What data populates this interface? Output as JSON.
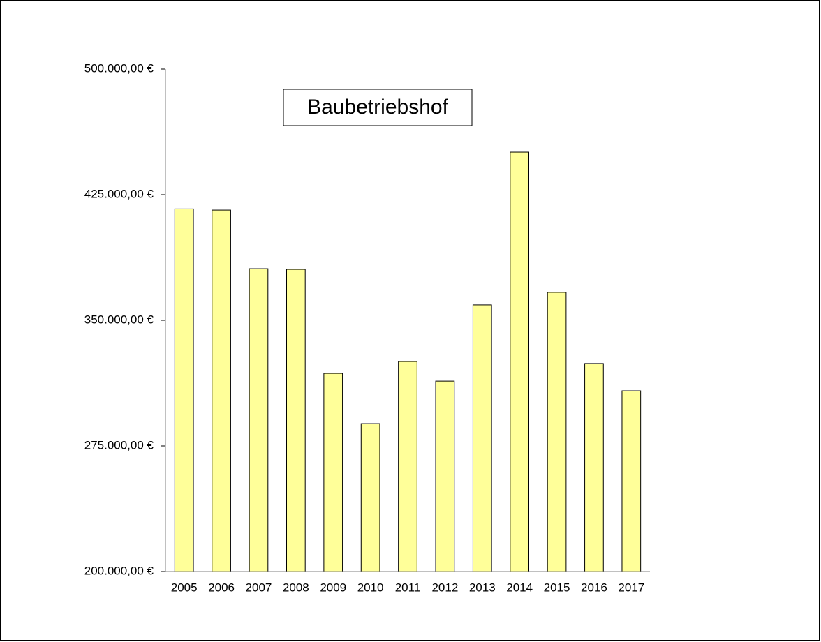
{
  "chart_data": {
    "type": "bar",
    "title": "Baubetriebshof",
    "categories": [
      "2005",
      "2006",
      "2007",
      "2008",
      "2009",
      "2010",
      "2011",
      "2012",
      "2013",
      "2014",
      "2015",
      "2016",
      "2017"
    ],
    "values": [
      416500,
      415800,
      380800,
      380400,
      318300,
      288300,
      325400,
      313700,
      359200,
      450400,
      366700,
      324200,
      307900
    ],
    "color": "#ffff99",
    "ylim": [
      200000,
      500000
    ],
    "yticks": [
      {
        "value": 200000,
        "label": "200.000,00 €"
      },
      {
        "value": 275000,
        "label": "275.000,00 €"
      },
      {
        "value": 350000,
        "label": "350.000,00 €"
      },
      {
        "value": 425000,
        "label": "425.000,00 €"
      },
      {
        "value": 500000,
        "label": "500.000,00 €"
      }
    ],
    "grid": false
  }
}
